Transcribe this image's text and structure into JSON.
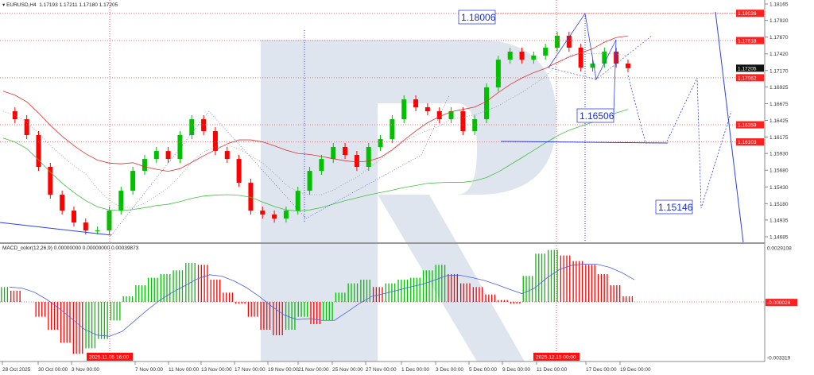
{
  "header": {
    "symbol_label": "EURUSD,H4",
    "ohlc": "1.17193 1.17211 1.17180 1.17205"
  },
  "macd_header": "MACD_color(12,26,9) 0.00000000 0.00000000 0.00039873",
  "colors": {
    "bull": "#00c000",
    "bear": "#ff0000",
    "ma_fast": "#e03030",
    "ma_slow": "#40c040",
    "forecast": "#3040e0",
    "watermark": "#dfe5ee",
    "macd_signal": "#4a5ee8"
  },
  "chart_data": [
    {
      "type": "candlestick",
      "title": "EURUSD,H4",
      "y_ticks": [
        "1.18165",
        "1.17920",
        "1.17670",
        "1.17420",
        "1.17170",
        "1.16925",
        "1.16675",
        "1.16425",
        "1.16175",
        "1.15930",
        "1.15680",
        "1.15430",
        "1.15180",
        "1.14935",
        "1.14685"
      ],
      "ylim": [
        1.14685,
        1.18165
      ],
      "x_ticks": [
        "28 Oct 2025",
        "30 Oct 00:00",
        "3 Nov 00:00",
        "7 Nov 00:00",
        "11 Nov 00:00",
        "13 Nov 00:00",
        "17 Nov 00:00",
        "19 Nov 00:00",
        "21 Nov 00:00",
        "25 Nov 00:00",
        "27 Nov 00:00",
        "1 Dec 00:00",
        "3 Dec 00:00",
        "5 Dec 00:00",
        "9 Dec 00:00",
        "11 Dec 00:00",
        "17 Dec 00:00",
        "19 Dec 00:00"
      ],
      "highlighted_times": [
        "2025.11.05 16:00",
        "2025.12.15 00:00"
      ],
      "closes": [
        1.16561,
        1.16442,
        1.16205,
        1.1573,
        1.15314,
        1.15076,
        1.14898,
        1.14779,
        1.14779,
        1.15076,
        1.15373,
        1.1567,
        1.15848,
        1.15967,
        1.15848,
        1.16205,
        1.16442,
        1.16264,
        1.15967,
        1.15848,
        1.15492,
        1.15076,
        1.15017,
        1.14957,
        1.15076,
        1.15373,
        1.1567,
        1.15848,
        1.16027,
        1.15908,
        1.1573,
        1.16027,
        1.16145,
        1.16442,
        1.16739,
        1.16621,
        1.16561,
        1.16442,
        1.16561,
        1.16264,
        1.16442,
        1.16918,
        1.17333,
        1.17452,
        1.17333,
        1.17393,
        1.17512,
        1.1769,
        1.17512,
        1.17215,
        1.17274,
        1.17452,
        1.17274,
        1.17205
      ],
      "price_levels": [
        "1.18026",
        "1.17618",
        "1.17062",
        "1.16359",
        "1.16103"
      ],
      "current_price": "1.17205",
      "forecast_labels": [
        "1.18006",
        "1.16506",
        "1.15146"
      ]
    },
    {
      "type": "bar",
      "title": "MACD_color(12,26,9)",
      "y_ticks": [
        "0.0029108",
        "-0.000026",
        "-0.003319"
      ],
      "ylim": [
        -0.003319,
        0.0029108
      ],
      "values": [
        0.0008,
        0.0006,
        0.0,
        -0.0008,
        -0.0015,
        -0.0022,
        -0.0028,
        -0.0025,
        -0.002,
        -0.001,
        0.0003,
        0.0009,
        0.0013,
        0.0015,
        0.0017,
        0.0021,
        0.002,
        0.0012,
        0.0005,
        -0.0001,
        -0.0008,
        -0.0015,
        -0.0018,
        -0.0015,
        -0.0008,
        -0.0012,
        -0.001,
        0.0005,
        0.001,
        0.0012,
        0.0008,
        0.001,
        0.0012,
        0.0013,
        0.0017,
        0.002,
        0.0015,
        0.001,
        0.0008,
        0.0004,
        0.0001,
        -0.0001,
        0.0014,
        0.0026,
        0.0028,
        0.0025,
        0.0022,
        0.002,
        0.0015,
        0.0009,
        0.0003
      ]
    }
  ]
}
